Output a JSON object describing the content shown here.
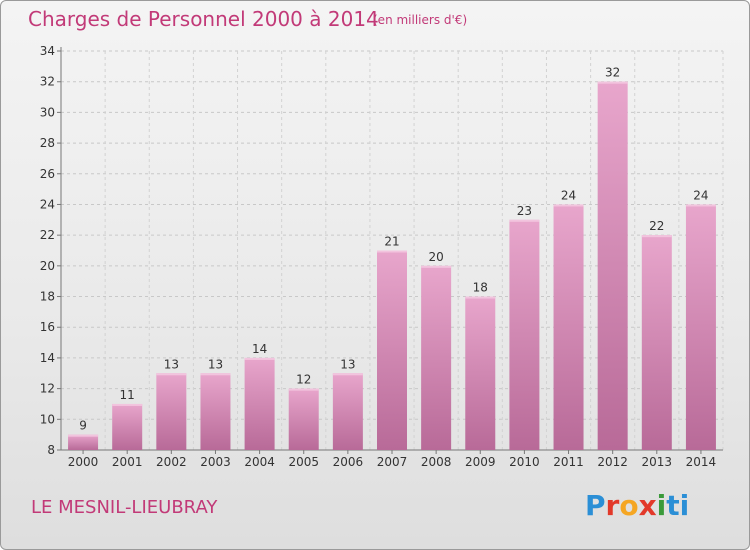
{
  "header": {
    "title": "Charges de Personnel 2000 à 2014",
    "subtitle": "(en milliers d'€)"
  },
  "footer": {
    "commune": "LE MESNIL-LIEUBRAY",
    "logo": "Proxiti"
  },
  "colors": {
    "bar_top": "#e8a6cc",
    "bar_bottom": "#b86a98",
    "title": "#c23a78"
  },
  "chart_data": {
    "type": "bar",
    "categories": [
      "2000",
      "2001",
      "2002",
      "2003",
      "2004",
      "2005",
      "2006",
      "2007",
      "2008",
      "2009",
      "2010",
      "2011",
      "2012",
      "2013",
      "2014"
    ],
    "values": [
      9,
      11,
      13,
      13,
      14,
      12,
      13,
      21,
      20,
      18,
      23,
      24,
      32,
      22,
      24
    ],
    "title": "Charges de Personnel 2000 à 2014",
    "xlabel": "",
    "ylabel": "",
    "ylim": [
      8,
      34
    ],
    "yticks": [
      8,
      10,
      12,
      14,
      16,
      18,
      20,
      22,
      24,
      26,
      28,
      30,
      32,
      34
    ],
    "grid": true
  }
}
